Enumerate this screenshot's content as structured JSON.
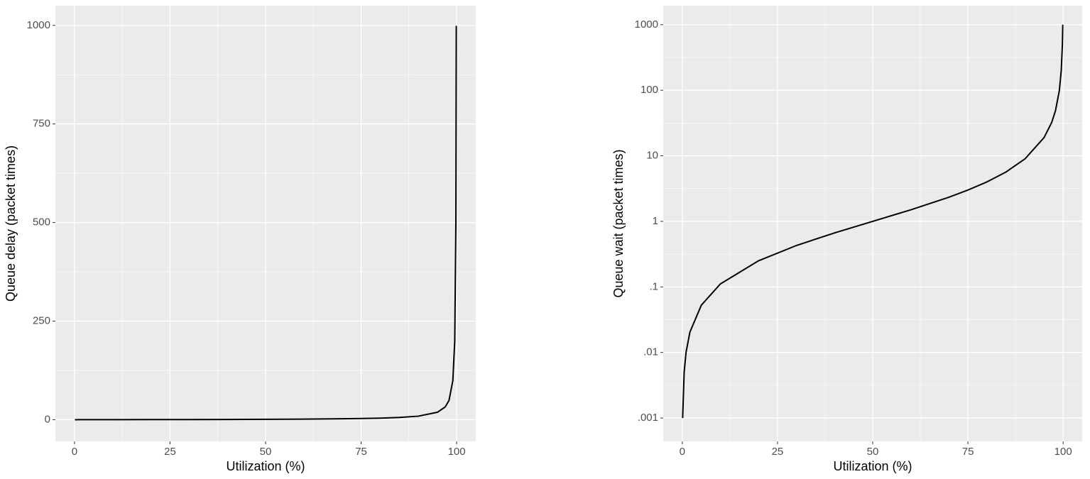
{
  "chart_data": [
    {
      "type": "line",
      "xlabel": "Utilization (%)",
      "ylabel": "Queue delay (packet times)",
      "x": [
        0.1,
        0.5,
        1,
        2,
        5,
        10,
        20,
        30,
        40,
        50,
        60,
        70,
        75,
        80,
        85,
        90,
        95,
        97,
        98,
        99,
        99.5,
        99.8,
        99.9
      ],
      "values": [
        0.001,
        0.00503,
        0.0101,
        0.0204,
        0.0526,
        0.111,
        0.25,
        0.429,
        0.667,
        1,
        1.5,
        2.333,
        3,
        4,
        5.667,
        9,
        19,
        32.33,
        49,
        99,
        199,
        499,
        999
      ],
      "color": "#000000",
      "xlim": [
        -5,
        105
      ],
      "xticks": [
        0,
        25,
        50,
        75,
        100
      ],
      "ylim": [
        -55,
        1050
      ],
      "yticks": [
        0,
        250,
        500,
        750,
        1000
      ],
      "grid": true,
      "minor_grid": true,
      "ylog": false
    },
    {
      "type": "line",
      "xlabel": "Utilization (%)",
      "ylabel": "Queue wait (packet times)",
      "x": [
        0.1,
        0.5,
        1,
        2,
        5,
        10,
        20,
        30,
        40,
        50,
        60,
        70,
        75,
        80,
        85,
        90,
        95,
        97,
        98,
        99,
        99.5,
        99.8,
        99.9
      ],
      "values": [
        0.001,
        0.00503,
        0.0101,
        0.0204,
        0.0526,
        0.111,
        0.25,
        0.429,
        0.667,
        1,
        1.5,
        2.333,
        3,
        4,
        5.667,
        9,
        19,
        32.33,
        49,
        99,
        199,
        499,
        999
      ],
      "color": "#000000",
      "xlim": [
        -5,
        105
      ],
      "xticks": [
        0,
        25,
        50,
        75,
        100
      ],
      "ylim": [
        0.00044,
        1950
      ],
      "yticks": [
        {
          "value": 0.001,
          "label": ".001"
        },
        {
          "value": 0.01,
          "label": ".01"
        },
        {
          "value": 0.1,
          "label": ".1"
        },
        1,
        10,
        100,
        1000
      ],
      "grid": true,
      "minor_grid": true,
      "ylog": true
    }
  ]
}
